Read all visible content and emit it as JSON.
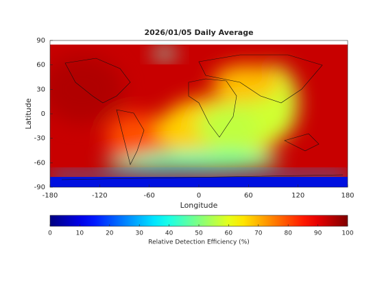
{
  "chart_data": {
    "type": "map",
    "title": "2026/01/05 Daily Average",
    "x_label": "Longitude",
    "y_label": "Latitude",
    "xlim": [
      -180,
      180
    ],
    "ylim": [
      -90,
      90
    ],
    "xticks": [
      -180,
      -120,
      -60,
      0,
      60,
      120,
      180
    ],
    "yticks": [
      -90,
      -60,
      -30,
      0,
      30,
      60,
      90
    ],
    "colorbar": {
      "label": "Relative Detection Efficiency (%)",
      "colormap": "jet",
      "lim": [
        0,
        100
      ],
      "ticks": [
        0,
        10,
        20,
        30,
        40,
        50,
        60,
        70,
        80,
        90,
        100
      ]
    }
  }
}
